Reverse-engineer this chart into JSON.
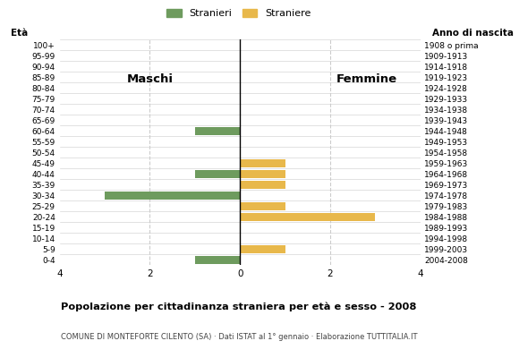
{
  "age_groups": [
    "0-4",
    "5-9",
    "10-14",
    "15-19",
    "20-24",
    "25-29",
    "30-34",
    "35-39",
    "40-44",
    "45-49",
    "50-54",
    "55-59",
    "60-64",
    "65-69",
    "70-74",
    "75-79",
    "80-84",
    "85-89",
    "90-94",
    "95-99",
    "100+"
  ],
  "birth_years": [
    "2004-2008",
    "1999-2003",
    "1994-1998",
    "1989-1993",
    "1984-1988",
    "1979-1983",
    "1974-1978",
    "1969-1973",
    "1964-1968",
    "1959-1963",
    "1954-1958",
    "1949-1953",
    "1944-1948",
    "1939-1943",
    "1934-1938",
    "1929-1933",
    "1924-1928",
    "1919-1923",
    "1914-1918",
    "1909-1913",
    "1908 o prima"
  ],
  "males": [
    -1,
    0,
    0,
    0,
    0,
    0,
    -3,
    0,
    -1,
    0,
    0,
    0,
    -1,
    0,
    0,
    0,
    0,
    0,
    0,
    0,
    0
  ],
  "females": [
    0,
    1,
    0,
    0,
    3,
    1,
    0,
    1,
    1,
    1,
    0,
    0,
    0,
    0,
    0,
    0,
    0,
    0,
    0,
    0,
    0
  ],
  "male_color": "#6e9b5e",
  "female_color": "#e8b84b",
  "title": "Popolazione per cittadinanza straniera per età e sesso - 2008",
  "subtitle": "COMUNE DI MONTEFORTE CILENTO (SA) · Dati ISTAT al 1° gennaio · Elaborazione TUTTITALIA.IT",
  "legend_male": "Stranieri",
  "legend_female": "Straniere",
  "label_maschi": "Maschi",
  "label_femmine": "Femmine",
  "label_eta": "Età",
  "label_anno": "Anno di nascita",
  "xlim": 4,
  "background_color": "#ffffff",
  "grid_color": "#cccccc",
  "bar_height": 0.75
}
